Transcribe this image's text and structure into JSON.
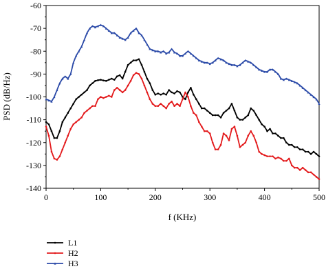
{
  "chart_data": {
    "type": "line",
    "title": "",
    "xlabel": "f (KHz)",
    "ylabel": "PSD (dB/Hz)",
    "xlim": [
      0,
      500
    ],
    "ylim": [
      -140,
      -60
    ],
    "xticks": [
      0,
      100,
      200,
      300,
      400,
      500
    ],
    "yticks": [
      -140,
      -130,
      -120,
      -110,
      -100,
      -90,
      -80,
      -70,
      -60
    ],
    "grid": false,
    "legend_position": "bottom-left",
    "series": [
      {
        "name": "L1",
        "color": "#000000",
        "marker": "circle",
        "x": [
          0,
          5,
          10,
          15,
          20,
          25,
          30,
          35,
          40,
          45,
          50,
          55,
          60,
          65,
          70,
          75,
          80,
          85,
          90,
          95,
          100,
          105,
          110,
          115,
          120,
          125,
          130,
          135,
          140,
          145,
          150,
          155,
          160,
          165,
          170,
          175,
          180,
          185,
          190,
          195,
          200,
          205,
          210,
          215,
          220,
          225,
          230,
          235,
          240,
          245,
          250,
          255,
          260,
          265,
          270,
          275,
          280,
          285,
          290,
          295,
          300,
          305,
          310,
          315,
          320,
          325,
          330,
          335,
          340,
          345,
          350,
          355,
          360,
          365,
          370,
          375,
          380,
          385,
          390,
          395,
          400,
          405,
          410,
          415,
          420,
          425,
          430,
          435,
          440,
          445,
          450,
          455,
          460,
          465,
          470,
          475,
          480,
          485,
          490,
          495,
          500
        ],
        "y": [
          -111,
          -112,
          -115,
          -118,
          -118,
          -115,
          -111,
          -109,
          -107,
          -105,
          -103,
          -101,
          -100,
          -99,
          -98,
          -97,
          -95,
          -94,
          -93,
          -92.7,
          -92.5,
          -92.8,
          -93,
          -92.5,
          -92,
          -92.5,
          -91,
          -90.5,
          -92,
          -89,
          -86,
          -85,
          -84,
          -84,
          -83.5,
          -86,
          -89,
          -92,
          -94,
          -97,
          -99,
          -98.5,
          -99,
          -98.5,
          -99,
          -97,
          -98,
          -98.5,
          -97.5,
          -98,
          -100,
          -101,
          -98,
          -96,
          -99,
          -101,
          -103,
          -105,
          -105,
          -106,
          -107,
          -108,
          -108,
          -108,
          -109,
          -107,
          -106,
          -105,
          -103,
          -106,
          -109,
          -110,
          -110,
          -109,
          -108,
          -105,
          -106,
          -108,
          -110,
          -112,
          -113,
          -115,
          -114,
          -116,
          -116,
          -117,
          -118,
          -118,
          -120,
          -121,
          -121,
          -122,
          -122,
          -123,
          -123,
          -124,
          -124,
          -125,
          -124,
          -125,
          -126
        ]
      },
      {
        "name": "H2",
        "color": "#e31a1c",
        "marker": "circle",
        "x": [
          0,
          5,
          10,
          15,
          20,
          25,
          30,
          35,
          40,
          45,
          50,
          55,
          60,
          65,
          70,
          75,
          80,
          85,
          90,
          95,
          100,
          105,
          110,
          115,
          120,
          125,
          130,
          135,
          140,
          145,
          150,
          155,
          160,
          165,
          170,
          175,
          180,
          185,
          190,
          195,
          200,
          205,
          210,
          215,
          220,
          225,
          230,
          235,
          240,
          245,
          250,
          255,
          260,
          265,
          270,
          275,
          280,
          285,
          290,
          295,
          300,
          305,
          310,
          315,
          320,
          325,
          330,
          335,
          340,
          345,
          350,
          355,
          360,
          365,
          370,
          375,
          380,
          385,
          390,
          395,
          400,
          405,
          410,
          415,
          420,
          425,
          430,
          435,
          440,
          445,
          450,
          455,
          460,
          465,
          470,
          475,
          480,
          485,
          490,
          495,
          500
        ],
        "y": [
          -113,
          -117,
          -124,
          -127,
          -127.5,
          -126,
          -123,
          -120,
          -117,
          -114,
          -112,
          -111,
          -110,
          -109,
          -107,
          -106,
          -105,
          -104,
          -104,
          -101,
          -100,
          -100.5,
          -100,
          -99.5,
          -100,
          -97,
          -96,
          -97,
          -98,
          -97,
          -95,
          -93,
          -90.5,
          -89.5,
          -90,
          -92,
          -95,
          -98,
          -101,
          -103,
          -104,
          -104,
          -103,
          -104,
          -105,
          -103,
          -102,
          -104,
          -103,
          -104,
          -101,
          -98,
          -100,
          -104,
          -107,
          -108,
          -111,
          -113,
          -115,
          -115,
          -116,
          -120,
          -123,
          -123,
          -121,
          -116,
          -117,
          -119,
          -114,
          -113,
          -117,
          -122,
          -121,
          -120,
          -117,
          -115,
          -117,
          -120,
          -124,
          -125,
          -125.5,
          -126,
          -126,
          -126,
          -127,
          -126.5,
          -127,
          -128,
          -128,
          -127,
          -130,
          -131,
          -131,
          -132,
          -131,
          -132,
          -133,
          -133,
          -134,
          -135,
          -136
        ]
      },
      {
        "name": "H3",
        "color": "#2b4aa8",
        "marker": "triangle",
        "x": [
          0,
          5,
          10,
          15,
          20,
          25,
          30,
          35,
          40,
          45,
          50,
          55,
          60,
          65,
          70,
          75,
          80,
          85,
          90,
          95,
          100,
          105,
          110,
          115,
          120,
          125,
          130,
          135,
          140,
          145,
          150,
          155,
          160,
          165,
          170,
          175,
          180,
          185,
          190,
          195,
          200,
          205,
          210,
          215,
          220,
          225,
          230,
          235,
          240,
          245,
          250,
          255,
          260,
          265,
          270,
          275,
          280,
          285,
          290,
          295,
          300,
          305,
          310,
          315,
          320,
          325,
          330,
          335,
          340,
          345,
          350,
          355,
          360,
          365,
          370,
          375,
          380,
          385,
          390,
          395,
          400,
          405,
          410,
          415,
          420,
          425,
          430,
          435,
          440,
          445,
          450,
          455,
          460,
          465,
          470,
          475,
          480,
          485,
          490,
          495,
          500
        ],
        "y": [
          -101,
          -101.5,
          -102,
          -100,
          -97,
          -94,
          -92,
          -91,
          -92,
          -90,
          -85,
          -82,
          -80,
          -78,
          -75,
          -72,
          -70,
          -69,
          -69.5,
          -69,
          -68.5,
          -69,
          -70,
          -71,
          -72,
          -72,
          -73,
          -74,
          -74.5,
          -75,
          -74,
          -72,
          -71,
          -70,
          -72,
          -73,
          -75,
          -77,
          -79,
          -79.5,
          -80,
          -80,
          -80.5,
          -80,
          -81,
          -80.5,
          -79,
          -80.5,
          -81,
          -82,
          -82,
          -81,
          -80,
          -81,
          -82,
          -83,
          -84,
          -84.5,
          -85,
          -85,
          -85.5,
          -85,
          -84,
          -83,
          -83.5,
          -84,
          -85,
          -85.5,
          -86,
          -86,
          -86.5,
          -86,
          -85,
          -84,
          -84.5,
          -85,
          -86,
          -87,
          -88,
          -88.5,
          -89,
          -89,
          -88,
          -88,
          -89,
          -90,
          -92,
          -92.5,
          -92,
          -92.5,
          -93,
          -93.5,
          -94,
          -95,
          -96,
          -97,
          -98,
          -99,
          -100,
          -101,
          -103
        ]
      }
    ]
  }
}
